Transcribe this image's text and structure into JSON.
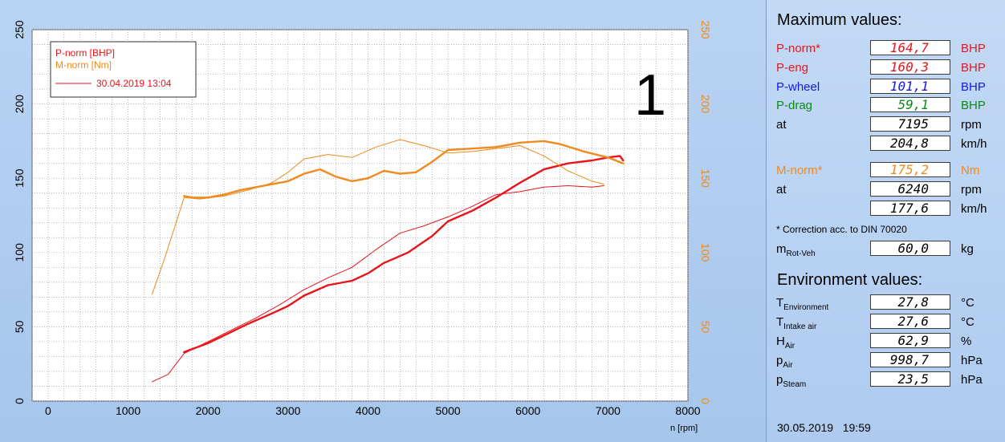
{
  "chart_data": {
    "type": "line",
    "graph_number": "1",
    "xlabel": "n [rpm]",
    "ylabel": "",
    "xlim": [
      -200,
      8000
    ],
    "ylim_left": [
      0,
      250
    ],
    "ylim_right": [
      0,
      250
    ],
    "x_ticks": [
      0,
      1000,
      2000,
      3000,
      4000,
      5000,
      6000,
      7000,
      8000
    ],
    "y_ticks": [
      0,
      50,
      100,
      150,
      200,
      250
    ],
    "grid": true,
    "legend_position": "top-left",
    "legend": [
      {
        "label": "P-norm [BHP]",
        "color": "#e8141c"
      },
      {
        "label": "M-norm [Nm]",
        "color": "#f08a1e"
      },
      {
        "label": "30.04.2019 13:04",
        "color": "#e8141c",
        "style": "line"
      }
    ],
    "series": [
      {
        "name": "P-norm [BHP]",
        "axis": "left",
        "color": "#e8141c",
        "width": 2.4,
        "x": [
          1700,
          2000,
          2500,
          2800,
          3000,
          3200,
          3500,
          3800,
          4000,
          4200,
          4500,
          4800,
          5000,
          5300,
          5600,
          5900,
          6200,
          6500,
          6800,
          7000,
          7150,
          7190
        ],
        "y": [
          33,
          39,
          52,
          59,
          64,
          71,
          78,
          81,
          86,
          93,
          100,
          111,
          121,
          128,
          137,
          147,
          156,
          160,
          162,
          164,
          165,
          162
        ]
      },
      {
        "name": "M-norm [Nm]",
        "axis": "right",
        "color": "#f08a1e",
        "width": 2.4,
        "x": [
          1700,
          1800,
          2000,
          2200,
          2400,
          2600,
          2800,
          3000,
          3200,
          3400,
          3600,
          3800,
          4000,
          4200,
          4400,
          4600,
          4800,
          5000,
          5300,
          5600,
          5900,
          6200,
          6400,
          6700,
          7000,
          7190
        ],
        "y": [
          138,
          137,
          137,
          139,
          142,
          144,
          146,
          148,
          153,
          156,
          151,
          148,
          150,
          155,
          153,
          154,
          161,
          169,
          170,
          171,
          174,
          175,
          173,
          168,
          164,
          160
        ]
      },
      {
        "name": "30.04.2019 13:04",
        "axis": "left",
        "color": "#e8141c",
        "width": 1,
        "x": [
          1300,
          1500,
          1700,
          2000,
          2300,
          2600,
          2900,
          3200,
          3500,
          3800,
          4100,
          4400,
          4700,
          5000,
          5300,
          5600,
          5900,
          6200,
          6500,
          6800,
          6950
        ],
        "y": [
          13,
          18,
          32,
          40,
          48,
          56,
          65,
          75,
          83,
          90,
          102,
          113,
          118,
          124,
          131,
          139,
          141,
          144,
          145,
          144,
          145
        ]
      },
      {
        "name": "30.04.2019 13:04 (M)",
        "axis": "right",
        "color": "#f08a1e",
        "width": 1,
        "x": [
          1300,
          1450,
          1600,
          1700,
          1900,
          2200,
          2500,
          2800,
          3000,
          3200,
          3500,
          3800,
          4100,
          4400,
          4700,
          5000,
          5300,
          5600,
          5900,
          6200,
          6500,
          6800,
          6950
        ],
        "y": [
          72,
          95,
          120,
          137,
          136,
          138,
          142,
          147,
          154,
          163,
          166,
          164,
          171,
          176,
          172,
          167,
          168,
          170,
          172,
          165,
          155,
          148,
          146
        ]
      }
    ]
  },
  "max": {
    "title": "Maximum values:",
    "p_norm": {
      "label": "P-norm*",
      "value": "164,7",
      "unit": "BHP"
    },
    "p_eng": {
      "label": "P-eng",
      "value": "160,3",
      "unit": "BHP"
    },
    "p_wheel": {
      "label": "P-wheel",
      "value": "101,1",
      "unit": "BHP"
    },
    "p_drag": {
      "label": "P-drag",
      "value": "59,1",
      "unit": "BHP"
    },
    "at_rpm": {
      "label": "at",
      "value": "7195",
      "unit": "rpm"
    },
    "at_kmh": {
      "value": "204,8",
      "unit": "km/h"
    },
    "m_norm": {
      "label": "M-norm*",
      "value": "175,2",
      "unit": "Nm"
    },
    "m_at_rpm": {
      "label": "at",
      "value": "6240",
      "unit": "rpm"
    },
    "m_at_kmh": {
      "value": "177,6",
      "unit": "km/h"
    },
    "correction": "* Correction acc. to DIN 70020",
    "m_rot": {
      "label": "m",
      "label_sub": "Rot-Veh",
      "value": "60,0",
      "unit": "kg"
    }
  },
  "env": {
    "title": "Environment values:",
    "t_env": {
      "label": "T",
      "label_sub": "Environment",
      "value": "27,8",
      "unit": "°C"
    },
    "t_intake": {
      "label": "T",
      "label_sub": "Intake air",
      "value": "27,6",
      "unit": "°C"
    },
    "h_air": {
      "label": "H",
      "label_sub": "Air",
      "value": "62,9",
      "unit": "%"
    },
    "p_air": {
      "label": "p",
      "label_sub": "Air",
      "value": "998,7",
      "unit": "hPa"
    },
    "p_steam": {
      "label": "p",
      "label_sub": "Steam",
      "value": "23,5",
      "unit": "hPa"
    }
  },
  "date_stamp": "30.05.2019   19:59"
}
